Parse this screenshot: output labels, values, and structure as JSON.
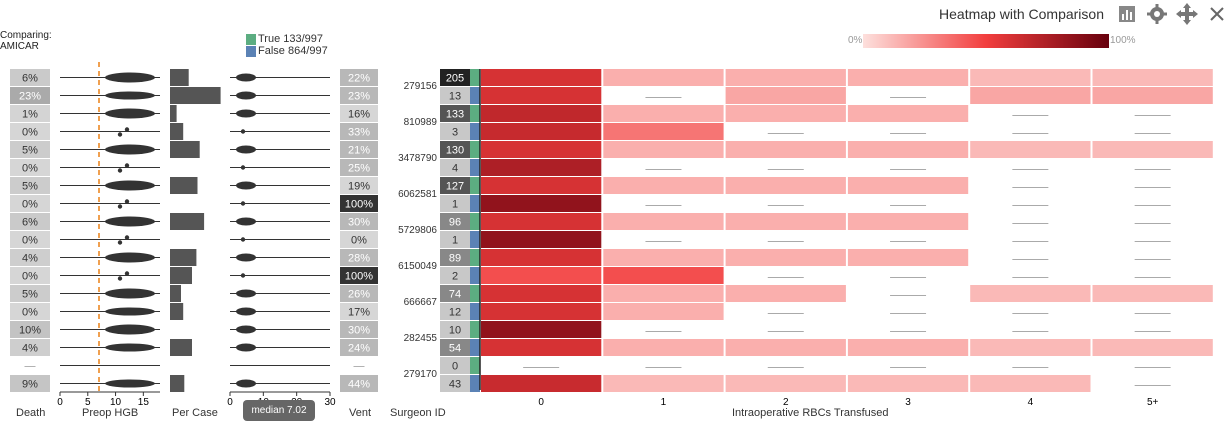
{
  "header": {
    "title": "Heatmap with Comparison",
    "icons": [
      "bar-chart-icon",
      "gear-icon",
      "move-arrows-icon",
      "close-icon"
    ]
  },
  "comparing": {
    "label": "Comparing:",
    "value": "AMICAR"
  },
  "legend": [
    {
      "label": "True 133/997",
      "color": "#5cad81"
    },
    {
      "label": "False 864/997",
      "color": "#5b82b5"
    }
  ],
  "color_scale": {
    "min_label": "0%",
    "max_label": "100%",
    "colors": [
      "#fde0dd",
      "#f23e3e",
      "#67000d"
    ]
  },
  "bottom_labels": {
    "death": "Death",
    "preop": "Preop HGB",
    "per_case": "Per Case",
    "vent": "Vent",
    "surgeon": "Surgeon ID",
    "x_axis": "Intraoperative RBCs Transfused"
  },
  "median_tooltip": "median 7.02",
  "chart_data": {
    "type": "heatmap",
    "title": "Heatmap with Comparison",
    "xlabel": "Intraoperative RBCs Transfused",
    "ylabel": "Surgeon ID",
    "categories": [
      "0",
      "1",
      "2",
      "3",
      "4",
      "5+"
    ],
    "preop_axis": {
      "ticks": [
        "0",
        "5",
        "10",
        "15"
      ],
      "range": [
        0,
        18
      ],
      "median": 7.02
    },
    "per_case_axis": {
      "ticks": [
        "0",
        "10",
        "20",
        "30"
      ],
      "range": [
        0,
        30
      ]
    },
    "groups": [
      {
        "id": "279156",
        "true": {
          "count": "205",
          "death": "6%",
          "vent": "22%",
          "per_case": 0.17,
          "cells": [
            0.6,
            0.15,
            0.15,
            0.15,
            0.12,
            0.12
          ]
        },
        "false": {
          "count": "13",
          "death": "23%",
          "vent": "23%",
          "per_case": 0.46,
          "cells": [
            0.6,
            null,
            0.18,
            null,
            0.18,
            0.18
          ]
        }
      },
      {
        "id": "810989",
        "true": {
          "count": "133",
          "death": "1%",
          "vent": "16%",
          "per_case": 0.06,
          "cells": [
            0.68,
            0.15,
            0.15,
            0.15,
            null,
            null
          ]
        },
        "false": {
          "count": "3",
          "death": "0%",
          "vent": "33%",
          "per_case": 0.12,
          "cells": [
            0.66,
            0.33,
            null,
            null,
            null,
            null
          ]
        }
      },
      {
        "id": "3478790",
        "true": {
          "count": "130",
          "death": "5%",
          "vent": "21%",
          "per_case": 0.27,
          "cells": [
            0.6,
            0.15,
            0.15,
            0.15,
            0.12,
            0.12
          ]
        },
        "false": {
          "count": "4",
          "death": "0%",
          "vent": "25%",
          "per_case": 0,
          "cells": [
            0.75,
            null,
            null,
            null,
            null,
            null
          ]
        }
      },
      {
        "id": "6062581",
        "true": {
          "count": "127",
          "death": "5%",
          "vent": "19%",
          "per_case": 0.25,
          "cells": [
            0.6,
            0.15,
            0.15,
            0.15,
            null,
            null
          ]
        },
        "false": {
          "count": "1",
          "death": "0%",
          "vent": "100%",
          "per_case": 0,
          "cells": [
            0.85,
            null,
            null,
            null,
            null,
            null
          ]
        }
      },
      {
        "id": "5729806",
        "true": {
          "count": "96",
          "death": "6%",
          "vent": "30%",
          "per_case": 0.31,
          "cells": [
            0.6,
            0.15,
            0.15,
            0.15,
            null,
            null
          ]
        },
        "false": {
          "count": "1",
          "death": "0%",
          "vent": "0%",
          "per_case": 0,
          "cells": [
            0.85,
            null,
            null,
            null,
            null,
            null
          ]
        }
      },
      {
        "id": "6150049",
        "true": {
          "count": "89",
          "death": "4%",
          "vent": "28%",
          "per_case": 0.24,
          "cells": [
            0.6,
            0.15,
            0.15,
            0.15,
            null,
            null
          ]
        },
        "false": {
          "count": "2",
          "death": "0%",
          "vent": "100%",
          "per_case": 0.2,
          "cells": [
            0.45,
            0.45,
            null,
            null,
            null,
            null
          ]
        }
      },
      {
        "id": "666667",
        "true": {
          "count": "74",
          "death": "5%",
          "vent": "26%",
          "per_case": 0.1,
          "cells": [
            0.6,
            0.15,
            0.15,
            null,
            0.12,
            0.12
          ]
        },
        "false": {
          "count": "12",
          "death": "0%",
          "vent": "17%",
          "per_case": 0.12,
          "cells": [
            0.6,
            0.15,
            null,
            null,
            null,
            null
          ]
        }
      },
      {
        "id": "282455",
        "true": {
          "count": "10",
          "death": "10%",
          "vent": "30%",
          "per_case": 0,
          "cells": [
            0.85,
            null,
            null,
            null,
            null,
            null
          ]
        },
        "false": {
          "count": "54",
          "death": "4%",
          "vent": "24%",
          "per_case": 0.2,
          "cells": [
            0.6,
            0.15,
            0.15,
            0.15,
            0.12,
            0.12
          ]
        }
      },
      {
        "id": "279170",
        "true": {
          "count": "0",
          "death": "—",
          "vent": "—",
          "per_case": 0,
          "cells": [
            null,
            null,
            null,
            null,
            null,
            null
          ]
        },
        "false": {
          "count": "43",
          "death": "9%",
          "vent": "44%",
          "per_case": 0.13,
          "cells": [
            0.65,
            0.12,
            0.12,
            0.12,
            0.12,
            null
          ]
        }
      }
    ]
  }
}
